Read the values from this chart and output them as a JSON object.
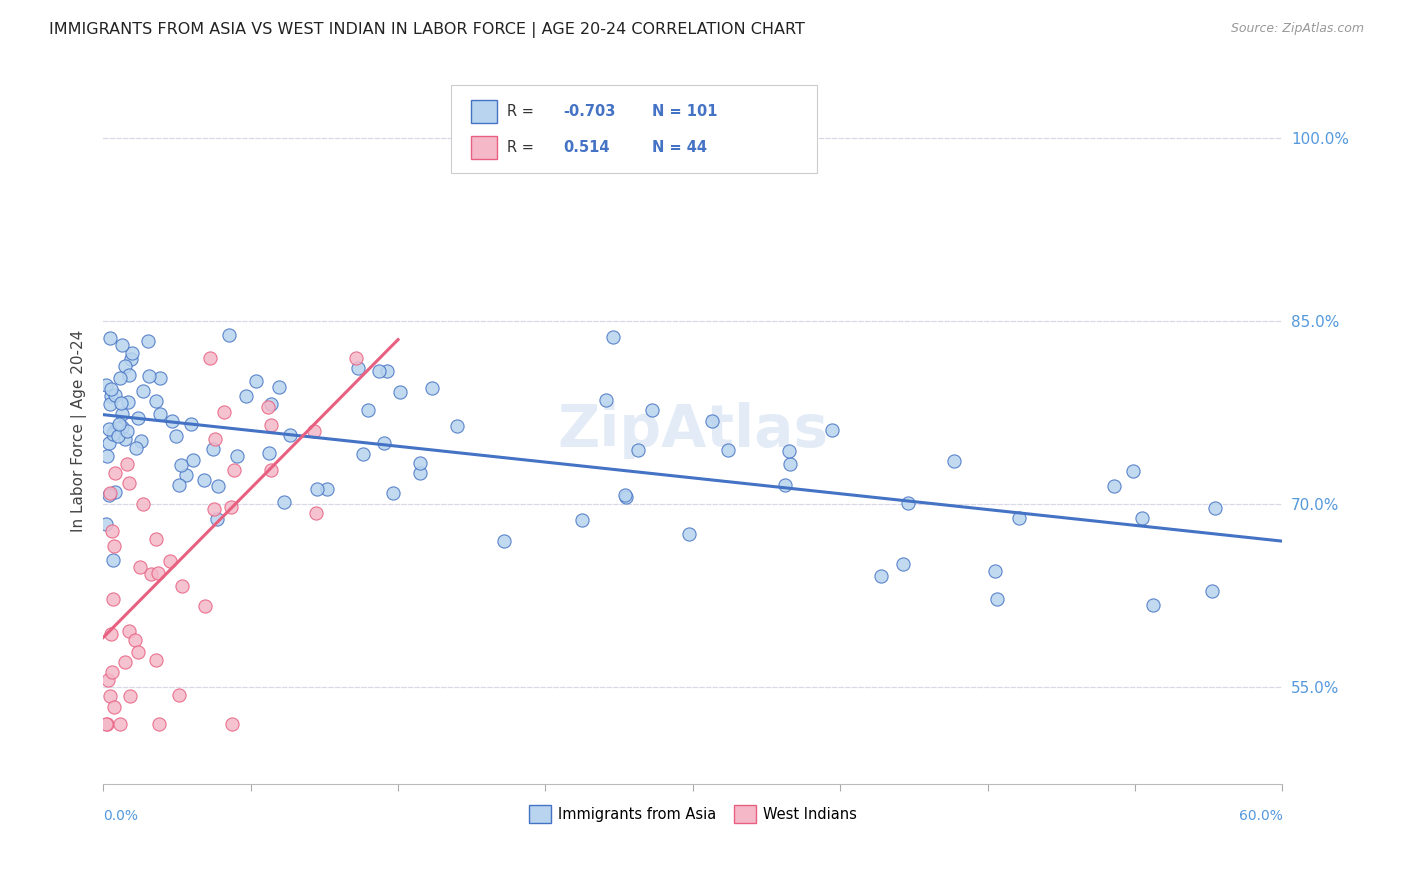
{
  "title": "IMMIGRANTS FROM ASIA VS WEST INDIAN IN LABOR FORCE | AGE 20-24 CORRELATION CHART",
  "source": "Source: ZipAtlas.com",
  "ylabel": "In Labor Force | Age 20-24",
  "ytick_vals": [
    0.55,
    0.7,
    0.85,
    1.0
  ],
  "ytick_labels": [
    "55.0%",
    "70.0%",
    "85.0%",
    "100.0%"
  ],
  "xlim": [
    0.0,
    0.6
  ],
  "ylim": [
    0.47,
    1.05
  ],
  "asia_R": -0.703,
  "asia_N": 101,
  "west_R": 0.514,
  "west_N": 44,
  "asia_color": "#b8d4ee",
  "asia_line_color": "#4472c4",
  "west_color": "#f4b8c8",
  "west_line_color": "#e86080",
  "background_color": "#ffffff",
  "grid_color": "#d8d8e8",
  "title_color": "#222222",
  "source_color": "#999999",
  "axis_label_color": "#5599dd",
  "legend_val_color": "#4472c4",
  "watermark_color": "#ccddf0"
}
